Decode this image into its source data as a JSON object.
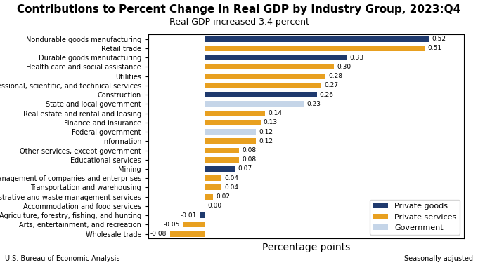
{
  "chart_data": {
    "type": "bar",
    "orientation": "horizontal",
    "title": "Contributions to Percent Change in Real GDP by Industry Group, 2023:Q4",
    "subtitle": "Real GDP increased 3.4 percent",
    "xlabel": "Percentage points",
    "annotations": [
      "U.S. Bureau of Economic Analysis",
      "Seasonally adjusted"
    ],
    "categories": [
      "Nondurable goods manufacturing",
      "Retail trade",
      "Durable goods manufacturing",
      "Health care and social assistance",
      "Utilities",
      "Professional, scientific, and technical services",
      "Construction",
      "State and local government",
      "Real estate and rental and leasing",
      "Finance and insurance",
      "Federal government",
      "Information",
      "Other services, except government",
      "Educational services",
      "Mining",
      "Management of companies and enterprises",
      "Transportation and warehousing",
      "Administrative and waste management services",
      "Accommodation and food services",
      "Agriculture, forestry, fishing, and hunting",
      "Arts, entertainment, and recreation",
      "Wholesale trade"
    ],
    "series": [
      {
        "name": "Private goods",
        "color": "#1f3a6e",
        "values": [
          0.52,
          null,
          0.33,
          null,
          null,
          null,
          0.26,
          null,
          null,
          null,
          null,
          null,
          null,
          null,
          0.07,
          null,
          null,
          null,
          null,
          -0.01,
          null,
          null
        ],
        "value_labels": [
          "0.52",
          null,
          "0.33",
          null,
          null,
          null,
          "0.26",
          null,
          null,
          null,
          null,
          null,
          null,
          null,
          "0.07",
          null,
          null,
          null,
          null,
          "-0.01",
          null,
          null
        ]
      },
      {
        "name": "Private services",
        "color": "#e8a020",
        "values": [
          null,
          0.51,
          null,
          0.3,
          0.28,
          0.27,
          null,
          null,
          0.14,
          0.13,
          null,
          0.12,
          0.08,
          0.08,
          null,
          0.04,
          0.04,
          0.02,
          0.0,
          null,
          -0.05,
          -0.08
        ],
        "value_labels": [
          null,
          "0.51",
          null,
          "0.30",
          "0.28",
          "0.27",
          null,
          null,
          "0.14",
          "0.13",
          null,
          "0.12",
          "0.08",
          "0.08",
          null,
          "0.04",
          "0.04",
          "0.02",
          "0.00",
          null,
          "-0.05",
          "-0.08"
        ]
      },
      {
        "name": "Government",
        "color": "#c5d5e8",
        "values": [
          null,
          null,
          null,
          null,
          null,
          null,
          null,
          0.23,
          null,
          null,
          0.12,
          null,
          null,
          null,
          null,
          null,
          null,
          null,
          null,
          null,
          null,
          null
        ],
        "value_labels": [
          null,
          null,
          null,
          null,
          null,
          null,
          null,
          "0.23",
          null,
          null,
          "0.12",
          null,
          null,
          null,
          null,
          null,
          null,
          null,
          null,
          null,
          null,
          null
        ]
      }
    ],
    "xlim": [
      -0.13,
      0.6
    ],
    "xticks": [],
    "tick_labels": "y",
    "data_labels": true,
    "legend": "lower right"
  }
}
